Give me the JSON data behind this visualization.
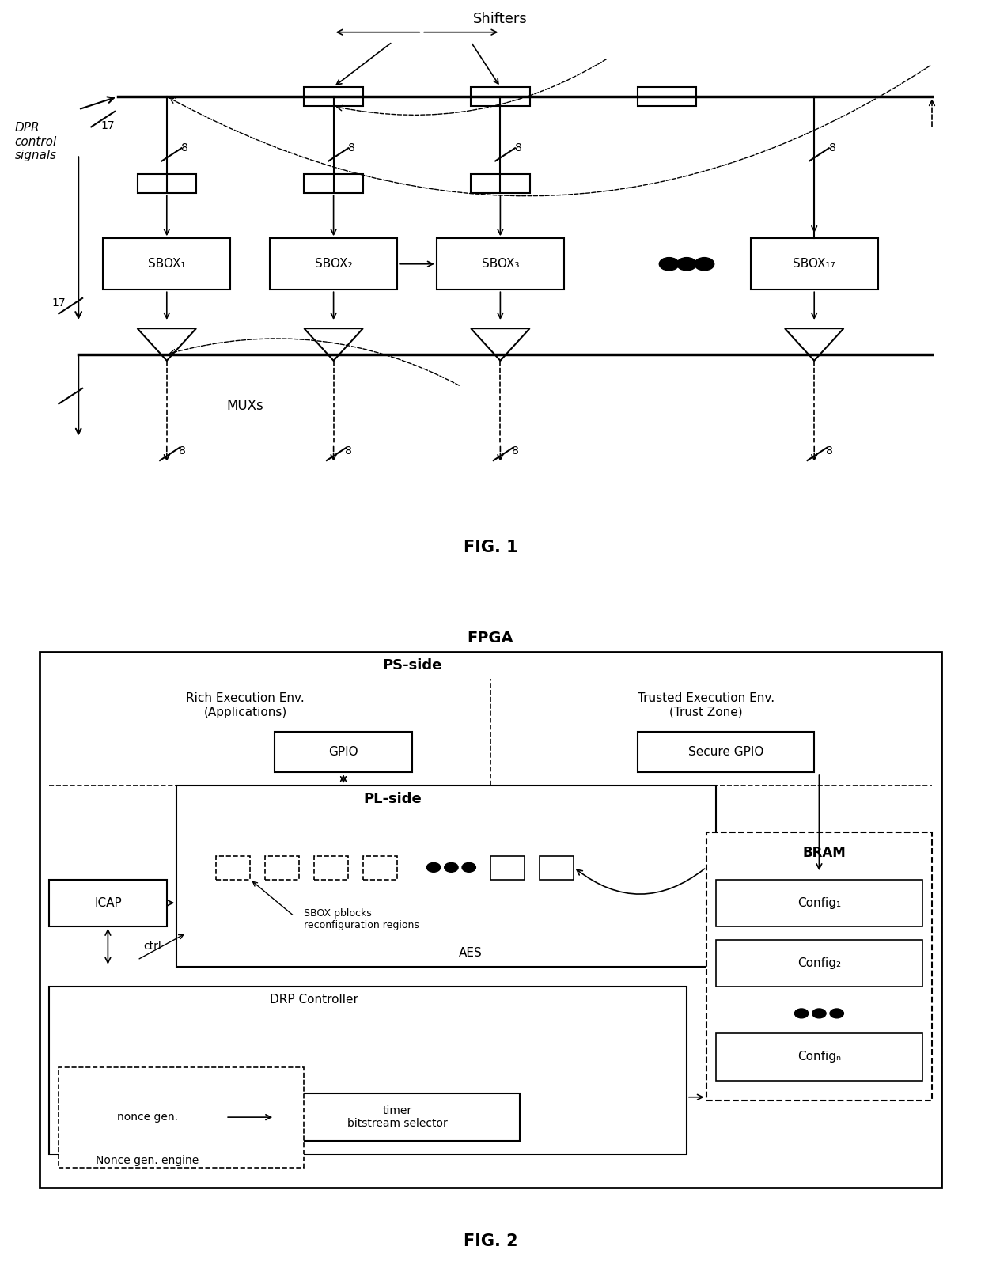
{
  "fig1": {
    "title": "FIG. 1",
    "label_shifters": "Shifters",
    "label_muxs": "MUXs",
    "label_dpr": "DPR\ncontrol\nsignals",
    "label_17_top": "17",
    "label_17_bot": "17",
    "sbox_labels": [
      "SBOX₁",
      "SBOX₂",
      "SBOX₃",
      "SBOX₁₇"
    ],
    "bus_labels_top": [
      "8",
      "8",
      "8",
      "8"
    ],
    "bus_labels_bot": [
      "8",
      "8",
      "8",
      "8"
    ]
  },
  "fig2": {
    "title": "FIG. 2",
    "fpga_label": "FPGA",
    "ps_label": "PS-side",
    "pl_label": "PL-side",
    "bram_label": "BRAM",
    "gpio_label": "GPIO",
    "secure_gpio_label": "Secure GPIO",
    "icap_label": "ICAP",
    "aes_label": "AES",
    "drp_label": "DRP Controller",
    "nonce_gen_label": "nonce gen.",
    "timer_label": "timer\nbitstream selector",
    "nonce_engine_label": "Nonce gen. engine",
    "ctrl_label": "ctrl",
    "sbox_pblocks_label": "SBOX pblocks\nreconfiguration regions",
    "config_labels": [
      "Config₁",
      "Config₂",
      "Configₙ"
    ],
    "rich_env_label": "Rich Execution Env.\n(Applications)",
    "trusted_env_label": "Trusted Execution Env.\n(Trust Zone)"
  },
  "colors": {
    "black": "#000000",
    "white": "#ffffff",
    "light_gray": "#f0f0f0"
  }
}
